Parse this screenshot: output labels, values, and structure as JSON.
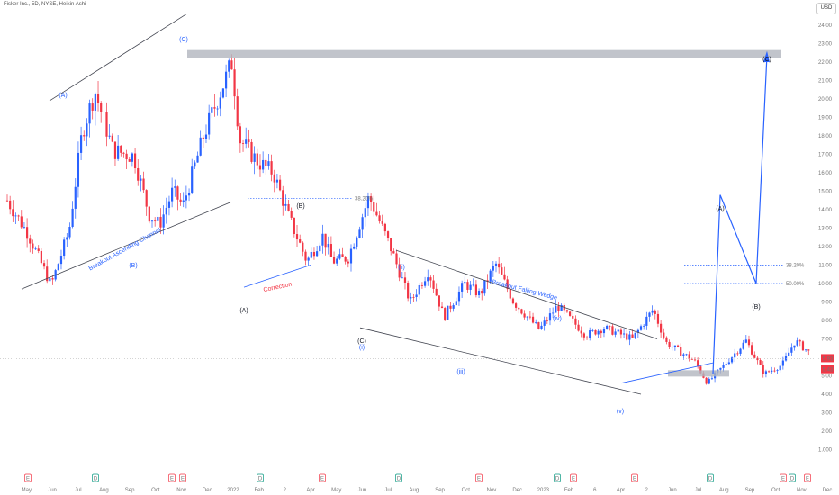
{
  "header": {
    "title": "Fisker Inc., 5D, NYSE, Heikin Ashi",
    "currency": "USD"
  },
  "chart_data": {
    "type": "candlestick",
    "ylim": [
      1.0,
      26.0
    ],
    "y_ticks": [
      "25.00",
      "24.00",
      "23.00",
      "22.00",
      "21.00",
      "20.00",
      "19.00",
      "18.00",
      "17.00",
      "16.00",
      "15.00",
      "14.00",
      "13.00",
      "12.00",
      "11.00",
      "10.00",
      "9.00",
      "8.00",
      "7.00",
      "6.00",
      "5.00",
      "4.00",
      "3.00",
      "2.00",
      "1.000"
    ],
    "x_ticks": [
      "May",
      "Jun",
      "Jul",
      "Aug",
      "Sep",
      "Oct",
      "Nov",
      "Dec",
      "2022",
      "Feb",
      "2",
      "Apr",
      "May",
      "Jun",
      "Jul",
      "Aug",
      "Sep",
      "Oct",
      "Nov",
      "Dec",
      "2023",
      "Feb",
      "6",
      "Apr",
      "2",
      "Jun",
      "Jul",
      "Aug",
      "Sep",
      "Oct",
      "Nov",
      "Dec"
    ],
    "price_path": [
      [
        0,
        14.5
      ],
      [
        0.8,
        12.7
      ],
      [
        1.7,
        9.9
      ],
      [
        2.4,
        12.9
      ],
      [
        2.9,
        18.2
      ],
      [
        3.4,
        20.4
      ],
      [
        4.1,
        17.2
      ],
      [
        4.9,
        16.9
      ],
      [
        5.5,
        13.7
      ],
      [
        5.9,
        13.2
      ],
      [
        6.4,
        15.0
      ],
      [
        6.8,
        14.2
      ],
      [
        7.6,
        18.0
      ],
      [
        8.2,
        20.2
      ],
      [
        8.7,
        22.0
      ],
      [
        9.0,
        17.8
      ],
      [
        9.7,
        16.6
      ],
      [
        10.3,
        16.0
      ],
      [
        10.9,
        13.6
      ],
      [
        11.6,
        11.2
      ],
      [
        12.2,
        12.6
      ],
      [
        12.6,
        11.2
      ],
      [
        13.2,
        11.4
      ],
      [
        14.0,
        14.7
      ],
      [
        14.8,
        12.1
      ],
      [
        15.6,
        9.0
      ],
      [
        16.3,
        10.7
      ],
      [
        16.9,
        8.2
      ],
      [
        17.7,
        10.0
      ],
      [
        18.3,
        9.4
      ],
      [
        18.9,
        11.1
      ],
      [
        19.6,
        9.0
      ],
      [
        20.6,
        7.5
      ],
      [
        21.3,
        8.8
      ],
      [
        22.4,
        7.2
      ],
      [
        23.1,
        7.6
      ],
      [
        24.2,
        7.0
      ],
      [
        25.0,
        8.6
      ],
      [
        25.5,
        6.8
      ],
      [
        26.6,
        5.8
      ],
      [
        27.1,
        4.6
      ],
      [
        27.7,
        5.5
      ],
      [
        28.6,
        6.9
      ],
      [
        29.3,
        5.1
      ],
      [
        30.0,
        5.6
      ],
      [
        30.5,
        6.9
      ],
      [
        31.1,
        6.2
      ]
    ],
    "current_price": "5.93",
    "prev_price": "5.43",
    "annotations": [
      "(C)",
      "(A)",
      "(B)",
      "(A)",
      "(B)",
      "Breakout Ascending Channel",
      "Correction",
      "38.20%",
      "(C)",
      "(i)",
      "(ii)",
      "(iii)",
      "(iv)",
      "(v)",
      "Breakout Falling Wedge",
      "(A)",
      "(B)",
      "(C)",
      "38.20%",
      "50.00%"
    ],
    "labels": {
      "top_c": "(C)",
      "channel_a": "(A)",
      "channel_b": "(B)",
      "b_top": "(B)",
      "a_low": "(A)",
      "asc_channel": "Breakout Ascending Channel",
      "correction": "Correction",
      "fib_382_top": "38.20%",
      "c_low": "(C)",
      "wave_i": "(i)",
      "wave_ii": "(ii)",
      "wave_iii": "(iii)",
      "wave_iv": "(iv)",
      "wave_v": "(v)",
      "falling_wedge": "Breakout Falling Wedge",
      "proj_a": "(A)",
      "proj_b": "(B)",
      "proj_c": "(C)",
      "fib_382_proj": "38.20%",
      "fib_500_proj": "50.00%"
    },
    "event_markers": [
      "E",
      "D",
      "E",
      "E",
      "D",
      "E",
      "D",
      "E",
      "D",
      "E",
      "E",
      "D",
      "E",
      "D",
      "E"
    ],
    "colors": {
      "up": "#2962ff",
      "down": "#f23645",
      "channel": "#434651",
      "projection": "#2962ff",
      "zone": "#b2b5be"
    }
  }
}
